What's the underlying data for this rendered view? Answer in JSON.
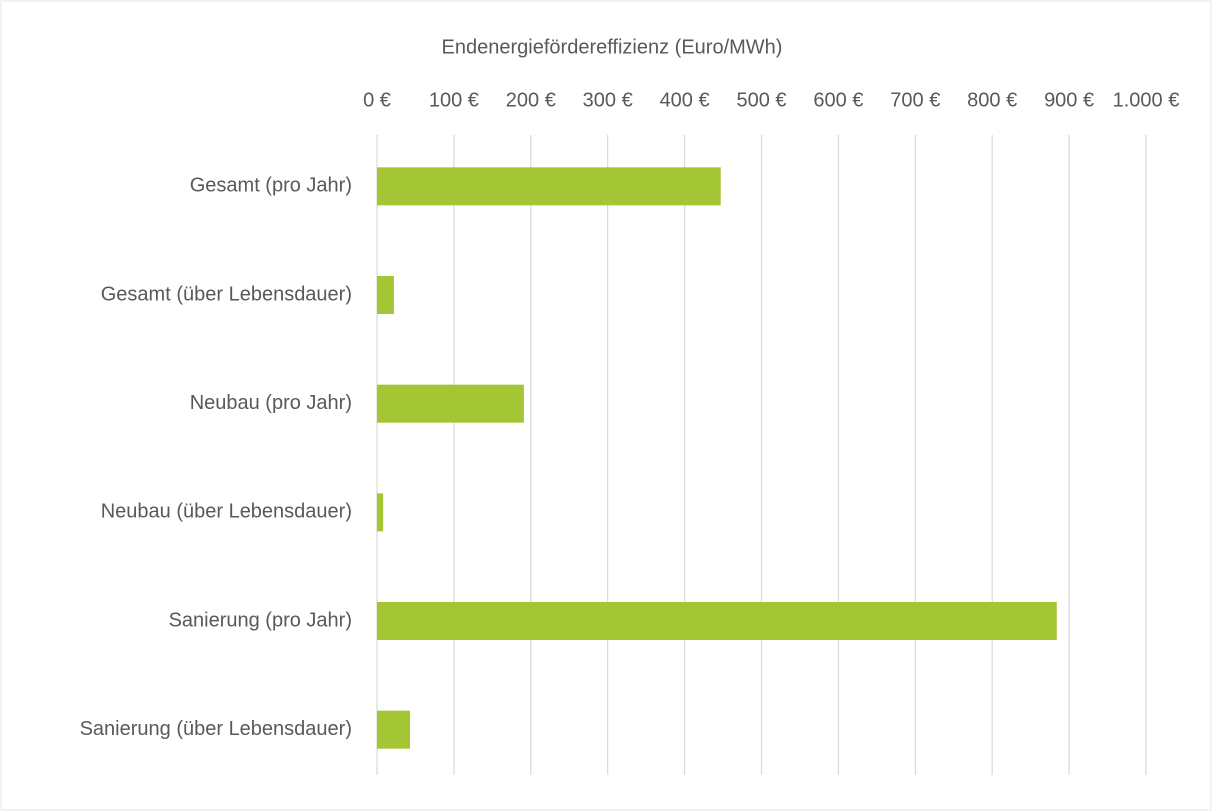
{
  "chart_data": {
    "type": "hbar",
    "title": "Endenergiefördereffizienz (Euro/MWh)",
    "categories": [
      "Gesamt (pro Jahr)",
      "Gesamt (über Lebensdauer)",
      "Neubau (pro Jahr)",
      "Neubau (über Lebensdauer)",
      "Sanierung (pro Jahr)",
      "Sanierung (über Lebensdauer)"
    ],
    "values": [
      447,
      22,
      191,
      8,
      884,
      43
    ],
    "color": "#a5c634",
    "xlim": [
      0,
      1000
    ],
    "xticks": [
      {
        "value": 0,
        "label": "0 €"
      },
      {
        "value": 100,
        "label": "100 €"
      },
      {
        "value": 200,
        "label": "200 €"
      },
      {
        "value": 300,
        "label": "300 €"
      },
      {
        "value": 400,
        "label": "400 €"
      },
      {
        "value": 500,
        "label": "500 €"
      },
      {
        "value": 600,
        "label": "600 €"
      },
      {
        "value": 700,
        "label": "700 €"
      },
      {
        "value": 800,
        "label": "800 €"
      },
      {
        "value": 900,
        "label": "900 €"
      },
      {
        "value": 1000,
        "label": "1.000 €"
      }
    ],
    "grid": true
  }
}
